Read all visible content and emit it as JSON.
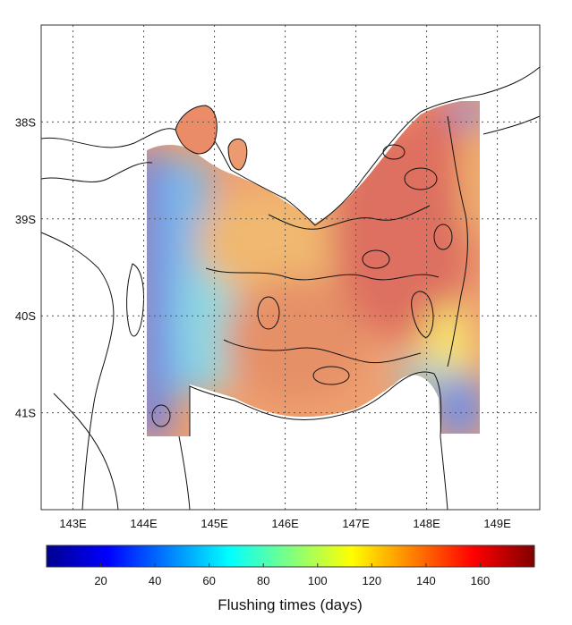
{
  "map": {
    "x_ticks": [
      {
        "lon": 143,
        "label": "143E"
      },
      {
        "lon": 144,
        "label": "144E"
      },
      {
        "lon": 145,
        "label": "145E"
      },
      {
        "lon": 146,
        "label": "146E"
      },
      {
        "lon": 147,
        "label": "147E"
      },
      {
        "lon": 148,
        "label": "148E"
      },
      {
        "lon": 149,
        "label": "149E"
      }
    ],
    "y_ticks": [
      {
        "lat": -38,
        "label": "38S"
      },
      {
        "lat": -39,
        "label": "39S"
      },
      {
        "lat": -40,
        "label": "40S"
      },
      {
        "lat": -41,
        "label": "41S"
      }
    ],
    "lon_range": [
      142.55,
      149.6
    ],
    "lat_range": [
      -42.0,
      -37.0
    ],
    "grid": true
  },
  "colorbar": {
    "title": "Flushing times (days)",
    "range": [
      0,
      180
    ],
    "ticks": [
      {
        "value": 20,
        "label": "20"
      },
      {
        "value": 40,
        "label": "40"
      },
      {
        "value": 60,
        "label": "60"
      },
      {
        "value": 80,
        "label": "80"
      },
      {
        "value": 100,
        "label": "100"
      },
      {
        "value": 120,
        "label": "120"
      },
      {
        "value": 140,
        "label": "140"
      },
      {
        "value": 160,
        "label": "160"
      }
    ],
    "colormap": [
      "#00008f",
      "#0000ff",
      "#0080ff",
      "#00ffff",
      "#80ff80",
      "#ffff00",
      "#ff8000",
      "#ff0000",
      "#800000"
    ]
  },
  "field_colors": {
    "west_low": "#6f7fe0",
    "west_mid": "#7fb8e8",
    "west_cyan": "#8fd8e0",
    "center_orange": "#f0b870",
    "center_deep": "#e69068",
    "east_red": "#dd7060",
    "southeast_yellow": "#f4e070",
    "southeast_blue": "#7890e0"
  }
}
